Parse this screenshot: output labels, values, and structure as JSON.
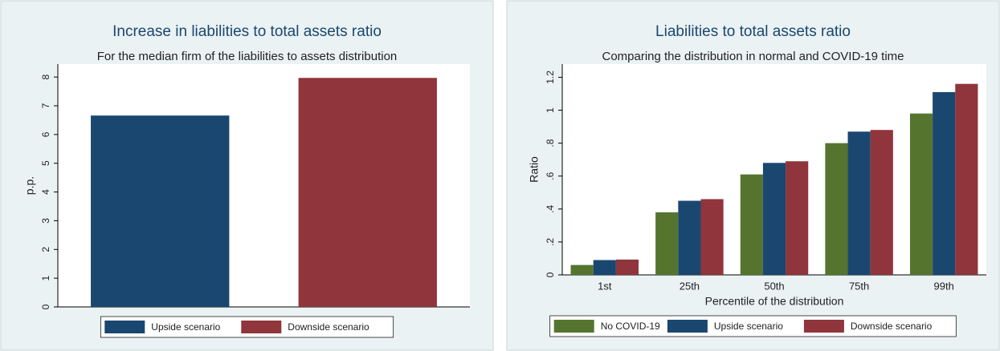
{
  "chart_data": [
    {
      "type": "bar",
      "title": "Increase in liabilities to total assets ratio",
      "subtitle": "For the median firm of the liabilities to assets distribution",
      "y_label": "p.p.",
      "series": [
        {
          "name": "Upside scenario",
          "color": "#1a476f",
          "values": [
            6.66
          ]
        },
        {
          "name": "Downside scenario",
          "color": "#90353b",
          "values": [
            7.97
          ]
        }
      ],
      "ylim": [
        0,
        8.45
      ],
      "yticks": [
        0,
        1,
        2,
        3,
        4,
        5,
        6,
        7,
        8
      ]
    },
    {
      "type": "bar",
      "title": "Liabilities to total assets ratio",
      "subtitle": "Comparing the distribution in normal and COVID-19 time",
      "y_label": "Ratio",
      "x_label": "Percentile of the distribution",
      "categories": [
        "1st",
        "25th",
        "50th",
        "75th",
        "99th"
      ],
      "series": [
        {
          "name": "No COVID-19",
          "color": "#55752f",
          "values": [
            0.06,
            0.38,
            0.61,
            0.8,
            0.98
          ]
        },
        {
          "name": "Upside scenario",
          "color": "#1a476f",
          "values": [
            0.09,
            0.45,
            0.68,
            0.87,
            1.11
          ]
        },
        {
          "name": "Downside scenario",
          "color": "#90353b",
          "values": [
            0.093,
            0.46,
            0.69,
            0.88,
            1.16
          ]
        }
      ],
      "ylim": [
        0,
        1.28
      ],
      "yticks": [
        0,
        {
          "value": 0.2,
          "label": ".2"
        },
        {
          "value": 0.4,
          "label": ".4"
        },
        {
          "value": 0.6,
          "label": ".6"
        },
        {
          "value": 0.8,
          "label": ".8"
        },
        1,
        {
          "value": 1.2,
          "label": "1.2"
        }
      ]
    }
  ]
}
